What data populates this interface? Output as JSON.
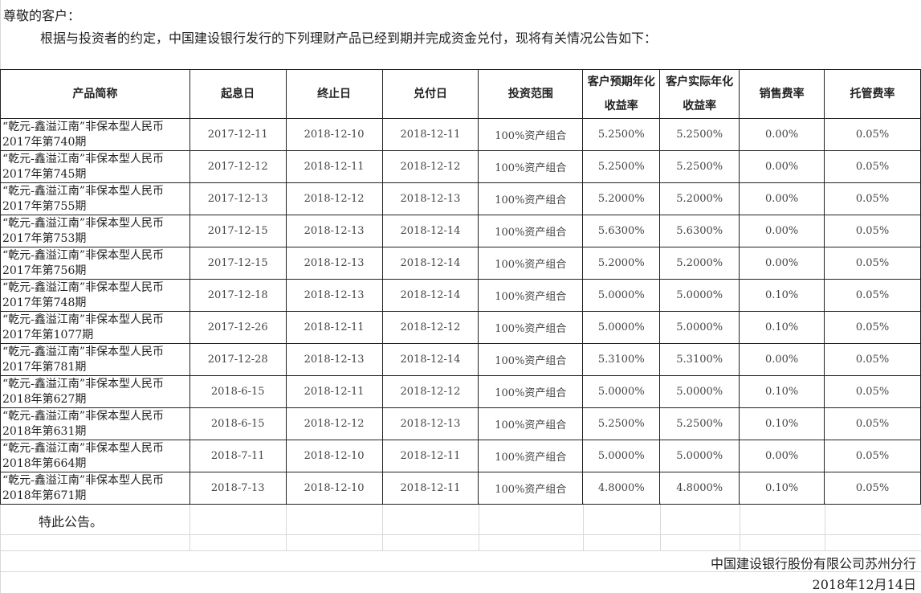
{
  "greeting": "尊敬的客户：",
  "intro": "根据与投资者的约定，中国建设银行发行的下列理财产品已经到期并完成资金兑付，现将有关情况公告如下：",
  "table": {
    "headers": [
      "产品简称",
      "起息日",
      "终止日",
      "兑付日",
      "投资范围",
      "客户预期年化收益率",
      "客户实际年化收益率",
      "销售费率",
      "托管费率"
    ],
    "rows": [
      [
        "“乾元-鑫溢江南”非保本型人民币2017年第740期",
        "2017-12-11",
        "2018-12-10",
        "2018-12-11",
        "100%资产组合",
        "5.2500%",
        "5.2500%",
        "0.00%",
        "0.05%"
      ],
      [
        "“乾元-鑫溢江南”非保本型人民币2017年第745期",
        "2017-12-12",
        "2018-12-11",
        "2018-12-12",
        "100%资产组合",
        "5.2500%",
        "5.2500%",
        "0.00%",
        "0.05%"
      ],
      [
        "“乾元-鑫溢江南”非保本型人民币2017年第755期",
        "2017-12-13",
        "2018-12-12",
        "2018-12-13",
        "100%资产组合",
        "5.2000%",
        "5.2000%",
        "0.00%",
        "0.05%"
      ],
      [
        "“乾元-鑫溢江南”非保本型人民币2017年第753期",
        "2017-12-15",
        "2018-12-13",
        "2018-12-14",
        "100%资产组合",
        "5.6300%",
        "5.6300%",
        "0.00%",
        "0.05%"
      ],
      [
        "“乾元-鑫溢江南”非保本型人民币2017年第756期",
        "2017-12-15",
        "2018-12-13",
        "2018-12-14",
        "100%资产组合",
        "5.2000%",
        "5.2000%",
        "0.00%",
        "0.05%"
      ],
      [
        "“乾元-鑫溢江南”非保本型人民币2017年第748期",
        "2017-12-18",
        "2018-12-13",
        "2018-12-14",
        "100%资产组合",
        "5.0000%",
        "5.0000%",
        "0.10%",
        "0.05%"
      ],
      [
        "“乾元-鑫溢江南”非保本型人民币2017年第1077期",
        "2017-12-26",
        "2018-12-11",
        "2018-12-12",
        "100%资产组合",
        "5.0000%",
        "5.0000%",
        "0.10%",
        "0.05%"
      ],
      [
        "“乾元-鑫溢江南”非保本型人民币2017年第781期",
        "2017-12-28",
        "2018-12-13",
        "2018-12-14",
        "100%资产组合",
        "5.3100%",
        "5.3100%",
        "0.00%",
        "0.05%"
      ],
      [
        "“乾元-鑫溢江南”非保本型人民币2018年第627期",
        "2018-6-15",
        "2018-12-11",
        "2018-12-12",
        "100%资产组合",
        "5.0000%",
        "5.0000%",
        "0.10%",
        "0.05%"
      ],
      [
        "“乾元-鑫溢江南”非保本型人民币2018年第631期",
        "2018-6-15",
        "2018-12-12",
        "2018-12-13",
        "100%资产组合",
        "5.2500%",
        "5.2500%",
        "0.10%",
        "0.05%"
      ],
      [
        "“乾元-鑫溢江南”非保本型人民币2018年第664期",
        "2018-7-11",
        "2018-12-10",
        "2018-12-11",
        "100%资产组合",
        "5.0000%",
        "5.0000%",
        "0.00%",
        "0.05%"
      ],
      [
        "“乾元-鑫溢江南”非保本型人民币2018年第671期",
        "2018-7-13",
        "2018-12-10",
        "2018-12-11",
        "100%资产组合",
        "4.8000%",
        "4.8000%",
        "0.10%",
        "0.05%"
      ]
    ]
  },
  "closing": "特此公告。",
  "signature": {
    "bank": "中国建设银行股份有限公司苏州分行",
    "date": "2018年12月14日"
  }
}
